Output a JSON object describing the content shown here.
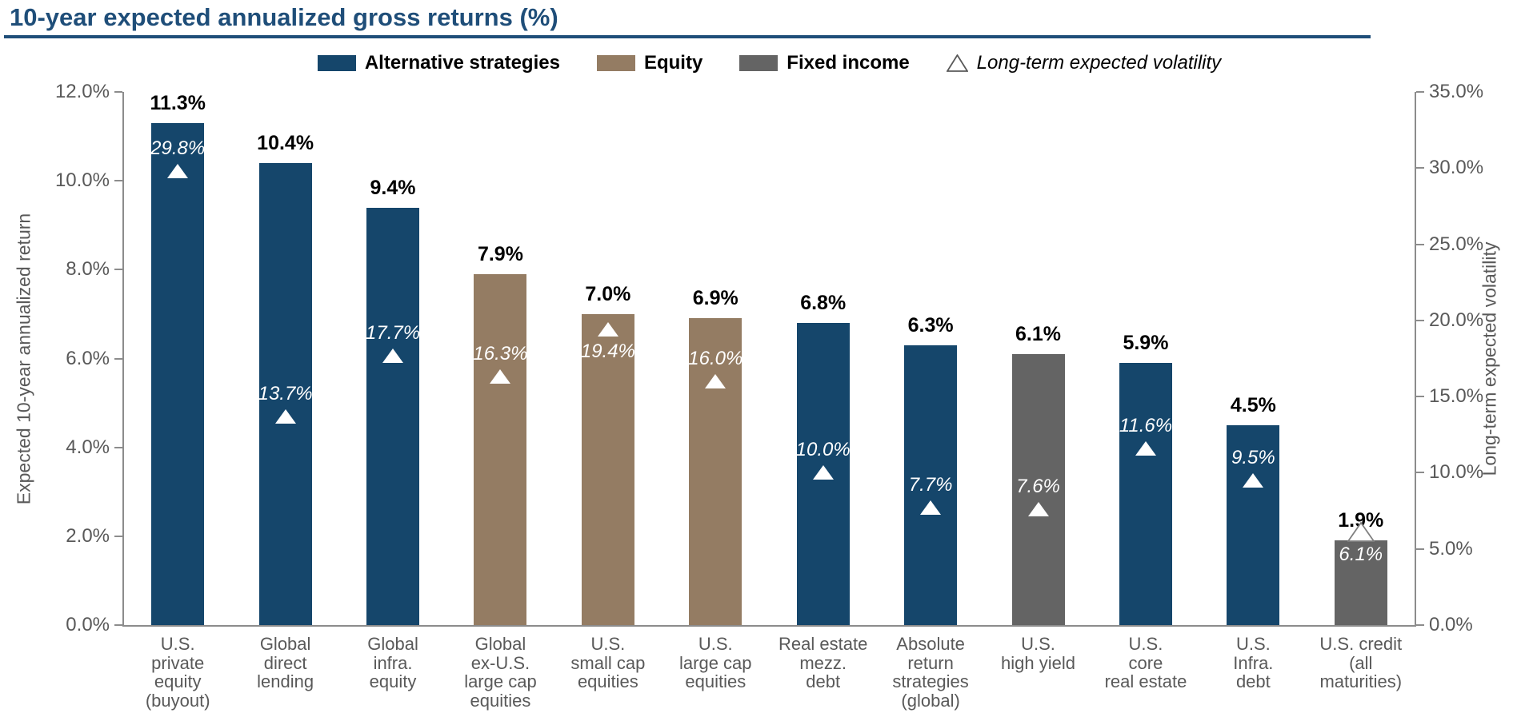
{
  "page": {
    "title": "10-year expected annualized gross returns (%)"
  },
  "legend": {
    "items": [
      {
        "key": "alternative",
        "label": "Alternative strategies",
        "color": "#15466B"
      },
      {
        "key": "equity",
        "label": "Equity",
        "color": "#947C63"
      },
      {
        "key": "fixed-income",
        "label": "Fixed income",
        "color": "#646464"
      }
    ],
    "marker_item": {
      "key": "volatility",
      "label": "Long-term expected volatility"
    }
  },
  "chart_data": {
    "type": "bar",
    "title": "10-year expected annualized gross returns (%)",
    "left_axis": {
      "label": "Expected 10-year annualized return",
      "min": 0,
      "max": 12,
      "tick_step": 2,
      "tick_labels": [
        "0.0%",
        "2.0%",
        "4.0%",
        "6.0%",
        "8.0%",
        "10.0%",
        "12.0%"
      ]
    },
    "right_axis": {
      "label": "Long-term expected volatility",
      "min": 0,
      "max": 35,
      "tick_step": 5,
      "tick_labels": [
        "0.0%",
        "5.0%",
        "10.0%",
        "15.0%",
        "20.0%",
        "25.0%",
        "30.0%",
        "35.0%"
      ]
    },
    "group_colors": {
      "Alternative strategies": "#15466B",
      "Equity": "#947C63",
      "Fixed income": "#646464"
    },
    "marker_legend": "Long-term expected volatility",
    "bars": [
      {
        "category": "U.S. private equity (buyout)",
        "category_lines": [
          "U.S.",
          "private",
          "equity",
          "(buyout)"
        ],
        "group": "Alternative strategies",
        "return_pct": 11.3,
        "return_label": "11.3%",
        "volatility_pct": 29.8,
        "volatility_label": "29.8%"
      },
      {
        "category": "Global direct lending",
        "category_lines": [
          "Global",
          "direct",
          "lending"
        ],
        "group": "Alternative strategies",
        "return_pct": 10.4,
        "return_label": "10.4%",
        "volatility_pct": 13.7,
        "volatility_label": "13.7%"
      },
      {
        "category": "Global infra. equity",
        "category_lines": [
          "Global",
          "infra.",
          "equity"
        ],
        "group": "Alternative strategies",
        "return_pct": 9.4,
        "return_label": "9.4%",
        "volatility_pct": 17.7,
        "volatility_label": "17.7%"
      },
      {
        "category": "Global ex-U.S. large cap equities",
        "category_lines": [
          "Global",
          "ex-U.S.",
          "large cap",
          "equities"
        ],
        "group": "Equity",
        "return_pct": 7.9,
        "return_label": "7.9%",
        "volatility_pct": 16.3,
        "volatility_label": "16.3%"
      },
      {
        "category": "U.S. small cap equities",
        "category_lines": [
          "U.S.",
          "small cap",
          "equities"
        ],
        "group": "Equity",
        "return_pct": 7.0,
        "return_label": "7.0%",
        "volatility_pct": 19.4,
        "volatility_label": "19.4%"
      },
      {
        "category": "U.S. large cap equities",
        "category_lines": [
          "U.S.",
          "large cap",
          "equities"
        ],
        "group": "Equity",
        "return_pct": 6.9,
        "return_label": "6.9%",
        "volatility_pct": 16.0,
        "volatility_label": "16.0%"
      },
      {
        "category": "Real estate mezz. debt",
        "category_lines": [
          "Real estate",
          "mezz.",
          "debt"
        ],
        "group": "Alternative strategies",
        "return_pct": 6.8,
        "return_label": "6.8%",
        "volatility_pct": 10.0,
        "volatility_label": "10.0%"
      },
      {
        "category": "Absolute return strategies (global)",
        "category_lines": [
          "Absolute",
          "return",
          "strategies",
          "(global)"
        ],
        "group": "Alternative strategies",
        "return_pct": 6.3,
        "return_label": "6.3%",
        "volatility_pct": 7.7,
        "volatility_label": "7.7%"
      },
      {
        "category": "U.S. high yield",
        "category_lines": [
          "U.S.",
          "high yield"
        ],
        "group": "Fixed income",
        "return_pct": 6.1,
        "return_label": "6.1%",
        "volatility_pct": 7.6,
        "volatility_label": "7.6%"
      },
      {
        "category": "U.S. core real estate",
        "category_lines": [
          "U.S.",
          "core",
          "real estate"
        ],
        "group": "Alternative strategies",
        "return_pct": 5.9,
        "return_label": "5.9%",
        "volatility_pct": 11.6,
        "volatility_label": "11.6%"
      },
      {
        "category": "U.S. Infra. debt",
        "category_lines": [
          "U.S.",
          "Infra.",
          "debt"
        ],
        "group": "Alternative strategies",
        "return_pct": 4.5,
        "return_label": "4.5%",
        "volatility_pct": 9.5,
        "volatility_label": "9.5%"
      },
      {
        "category": "U.S. credit (all maturities)",
        "category_lines": [
          "U.S. credit",
          "(all",
          "maturities)"
        ],
        "group": "Fixed income",
        "return_pct": 1.9,
        "return_label": "1.9%",
        "volatility_pct": 6.1,
        "volatility_label": "6.1%"
      }
    ]
  }
}
